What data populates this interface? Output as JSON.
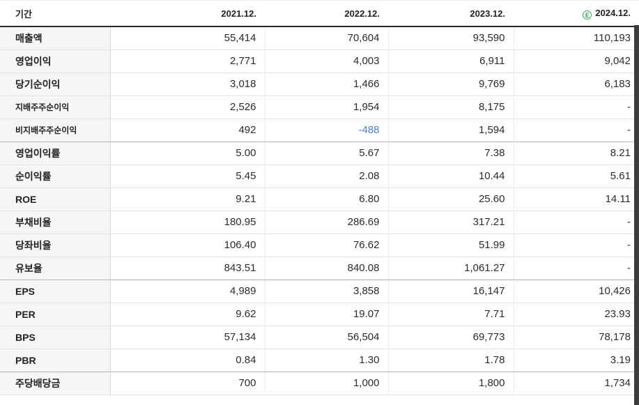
{
  "table": {
    "header": {
      "period_label": "기간",
      "columns": [
        "2021.12.",
        "2022.12.",
        "2023.12.",
        "2024.12."
      ],
      "estimate_column_index": 3,
      "estimate_icon_letter": "E"
    },
    "rows": [
      {
        "label": "매출액",
        "sub": false,
        "values": [
          "55,414",
          "70,604",
          "93,590",
          "110,193"
        ]
      },
      {
        "label": "영업이익",
        "sub": false,
        "values": [
          "2,771",
          "4,003",
          "6,911",
          "9,042"
        ]
      },
      {
        "label": "당기순이익",
        "sub": false,
        "values": [
          "3,018",
          "1,466",
          "9,769",
          "6,183"
        ]
      },
      {
        "label": "지배주주순이익",
        "sub": true,
        "values": [
          "2,526",
          "1,954",
          "8,175",
          "-"
        ]
      },
      {
        "label": "비지배주주순이익",
        "sub": true,
        "values": [
          "492",
          "-488",
          "1,594",
          "-"
        ]
      },
      {
        "label": "영업이익률",
        "sub": false,
        "values": [
          "5.00",
          "5.67",
          "7.38",
          "8.21"
        ]
      },
      {
        "label": "순이익률",
        "sub": false,
        "values": [
          "5.45",
          "2.08",
          "10.44",
          "5.61"
        ]
      },
      {
        "label": "ROE",
        "sub": false,
        "values": [
          "9.21",
          "6.80",
          "25.60",
          "14.11"
        ]
      },
      {
        "label": "부채비율",
        "sub": false,
        "values": [
          "180.95",
          "286.69",
          "317.21",
          "-"
        ]
      },
      {
        "label": "당좌비율",
        "sub": false,
        "values": [
          "106.40",
          "76.62",
          "51.99",
          "-"
        ]
      },
      {
        "label": "유보율",
        "sub": false,
        "values": [
          "843.51",
          "840.08",
          "1,061.27",
          "-"
        ]
      },
      {
        "label": "EPS",
        "sub": false,
        "values": [
          "4,989",
          "3,858",
          "16,147",
          "10,426"
        ]
      },
      {
        "label": "PER",
        "sub": false,
        "values": [
          "9.62",
          "19.07",
          "7.71",
          "23.93"
        ]
      },
      {
        "label": "BPS",
        "sub": false,
        "values": [
          "57,134",
          "56,504",
          "69,773",
          "78,178"
        ]
      },
      {
        "label": "PBR",
        "sub": false,
        "values": [
          "0.84",
          "1.30",
          "1.78",
          "3.19"
        ]
      },
      {
        "label": "주당배당금",
        "sub": false,
        "values": [
          "700",
          "1,000",
          "1,800",
          "1,734"
        ]
      }
    ],
    "section_end_row_indexes": [
      4,
      10,
      14
    ],
    "colors": {
      "negative_value_blue": "#4a7edd",
      "estimate_green": "#2daa5a",
      "row_label_background": "#f6f6f6",
      "header_underline": "#262626",
      "right_edge_strip": "#3d3d3d"
    }
  }
}
